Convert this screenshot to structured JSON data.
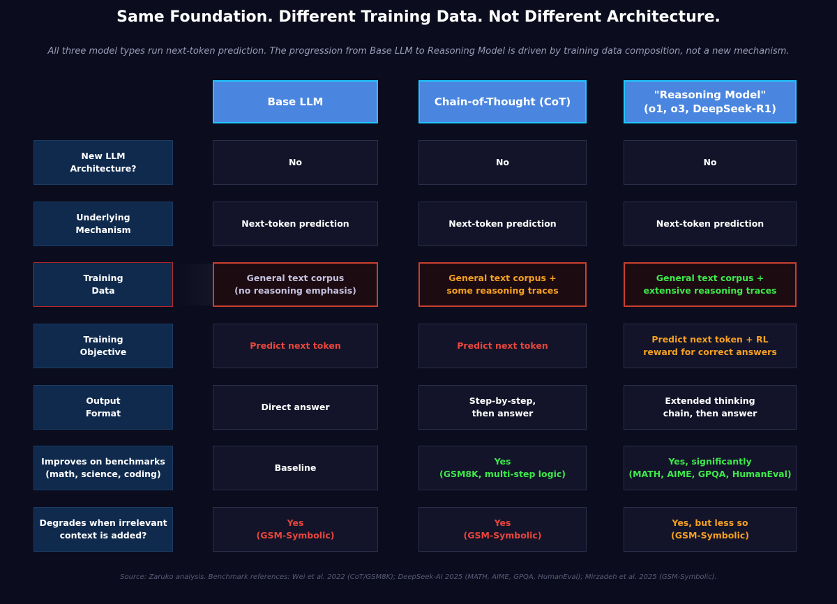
{
  "title": "Same Foundation. Different Training Data. Not Different Architecture.",
  "subtitle": "All three model types run next-token prediction. The progression from Base LLM to Reasoning Model is driven by training data composition, not a new mechanism.",
  "columns": [
    "Base LLM",
    "Chain-of-Thought (CoT)",
    "\"Reasoning Model\"\n(o1, o3, DeepSeek-R1)"
  ],
  "rows": [
    {
      "label": "New LLM\nArchitecture?",
      "cells": [
        {
          "text": "No",
          "color": "#ffffff"
        },
        {
          "text": "No",
          "color": "#ffffff"
        },
        {
          "text": "No",
          "color": "#ffffff"
        }
      ]
    },
    {
      "label": "Underlying\nMechanism",
      "cells": [
        {
          "text": "Next-token prediction",
          "color": "#ffffff"
        },
        {
          "text": "Next-token prediction",
          "color": "#ffffff"
        },
        {
          "text": "Next-token prediction",
          "color": "#ffffff"
        }
      ]
    },
    {
      "label": "Training\nData",
      "highlighted": true,
      "cells": [
        {
          "text": "General text corpus\n(no reasoning emphasis)",
          "color": "#c3c2de"
        },
        {
          "text": "General text corpus +\nsome reasoning traces",
          "color": "#f5a023"
        },
        {
          "text": "General text corpus +\nextensive reasoning traces",
          "color": "#3ee84a"
        }
      ]
    },
    {
      "label": "Training\nObjective",
      "cells": [
        {
          "text": "Predict next token",
          "color": "#e8463c"
        },
        {
          "text": "Predict next token",
          "color": "#e8463c"
        },
        {
          "text": "Predict next token + RL\nreward for correct answers",
          "color": "#f5a023"
        }
      ]
    },
    {
      "label": "Output\nFormat",
      "cells": [
        {
          "text": "Direct answer",
          "color": "#ffffff"
        },
        {
          "text": "Step-by-step,\nthen answer",
          "color": "#ffffff"
        },
        {
          "text": "Extended thinking\nchain, then answer",
          "color": "#ffffff"
        }
      ]
    },
    {
      "label": "Improves on benchmarks\n(math, science, coding)",
      "cells": [
        {
          "text": "Baseline",
          "color": "#ffffff"
        },
        {
          "text": "Yes\n(GSM8K, multi-step logic)",
          "color": "#3ee84a"
        },
        {
          "text": "Yes, significantly\n(MATH, AIME, GPQA, HumanEval)",
          "color": "#3ee84a"
        }
      ]
    },
    {
      "label": "Degrades when irrelevant\ncontext is added?",
      "cells": [
        {
          "text": "Yes\n(GSM-Symbolic)",
          "color": "#e8463c"
        },
        {
          "text": "Yes\n(GSM-Symbolic)",
          "color": "#e8463c"
        },
        {
          "text": "Yes, but less so\n(GSM-Symbolic)",
          "color": "#f5a023"
        }
      ]
    }
  ],
  "footer": "Source: Zaruko analysis. Benchmark references: Wei et al. 2022 (CoT/GSM8K); DeepSeek-AI 2025 (MATH, AIME, GPQA, HumanEval); Mirzadeh et al. 2025 (GSM-Symbolic).",
  "colors": {
    "background": "#0b0c1d",
    "column_header_fill": "#4a86e0",
    "column_header_border": "#1fc8ff",
    "row_label_fill": "#0f2a4d",
    "highlight_border": "#c9402f"
  }
}
